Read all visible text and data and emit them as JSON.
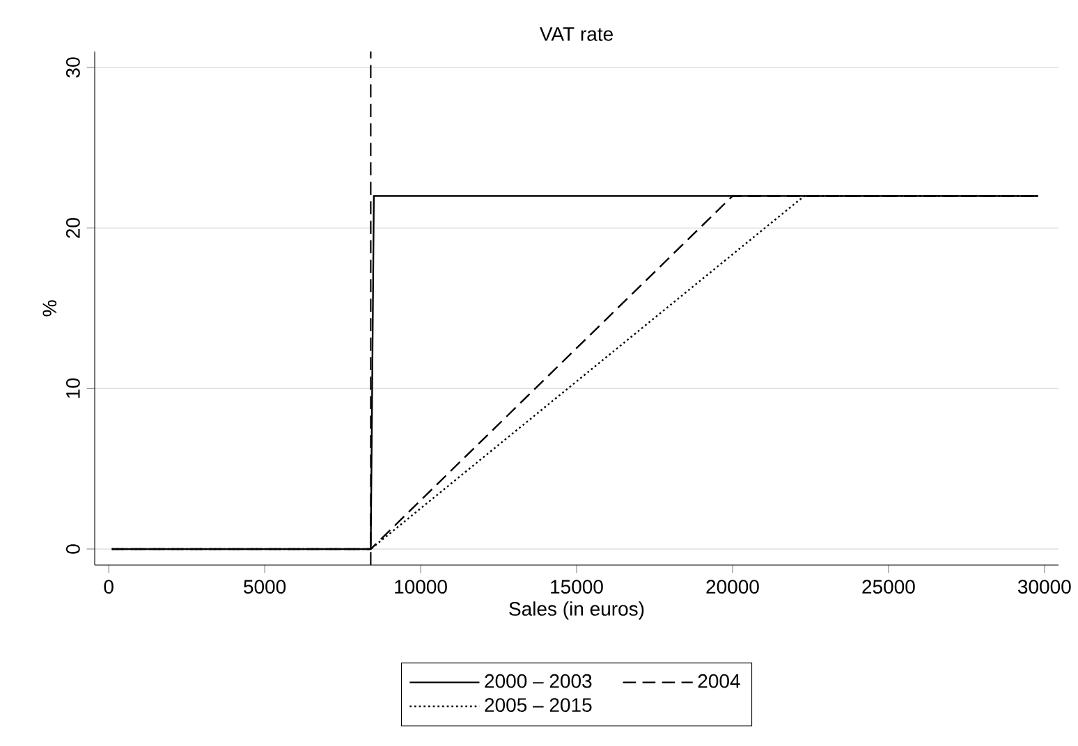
{
  "chart_data": {
    "type": "line",
    "title": "VAT rate",
    "xlabel": "Sales (in euros)",
    "ylabel": "%",
    "xlim": [
      -450,
      30450
    ],
    "ylim": [
      -1,
      31
    ],
    "xticks": [
      0,
      5000,
      10000,
      15000,
      20000,
      25000,
      30000
    ],
    "yticks": [
      0,
      10,
      20,
      30
    ],
    "grid": "y",
    "legend": "bottom",
    "marker": "none",
    "series": [
      {
        "name": "2000 – 2003",
        "color": "#000000",
        "line_style": "solid",
        "x": [
          100,
          8400,
          8500,
          29800
        ],
        "values": [
          0,
          0,
          22,
          22
        ]
      },
      {
        "name": "2004",
        "color": "#000000",
        "line_style": "dashed",
        "x": [
          100,
          8400,
          20000,
          29800
        ],
        "values": [
          0,
          0,
          22,
          22
        ]
      },
      {
        "name": "2005 – 2015",
        "color": "#000000",
        "line_style": "dotted",
        "x": [
          100,
          8400,
          22300,
          29800
        ],
        "values": [
          0,
          0,
          22,
          22
        ]
      }
    ],
    "ref_lines": [
      {
        "axis": "x",
        "value": 8400,
        "color": "#000000",
        "line_style": "dashed"
      }
    ]
  }
}
